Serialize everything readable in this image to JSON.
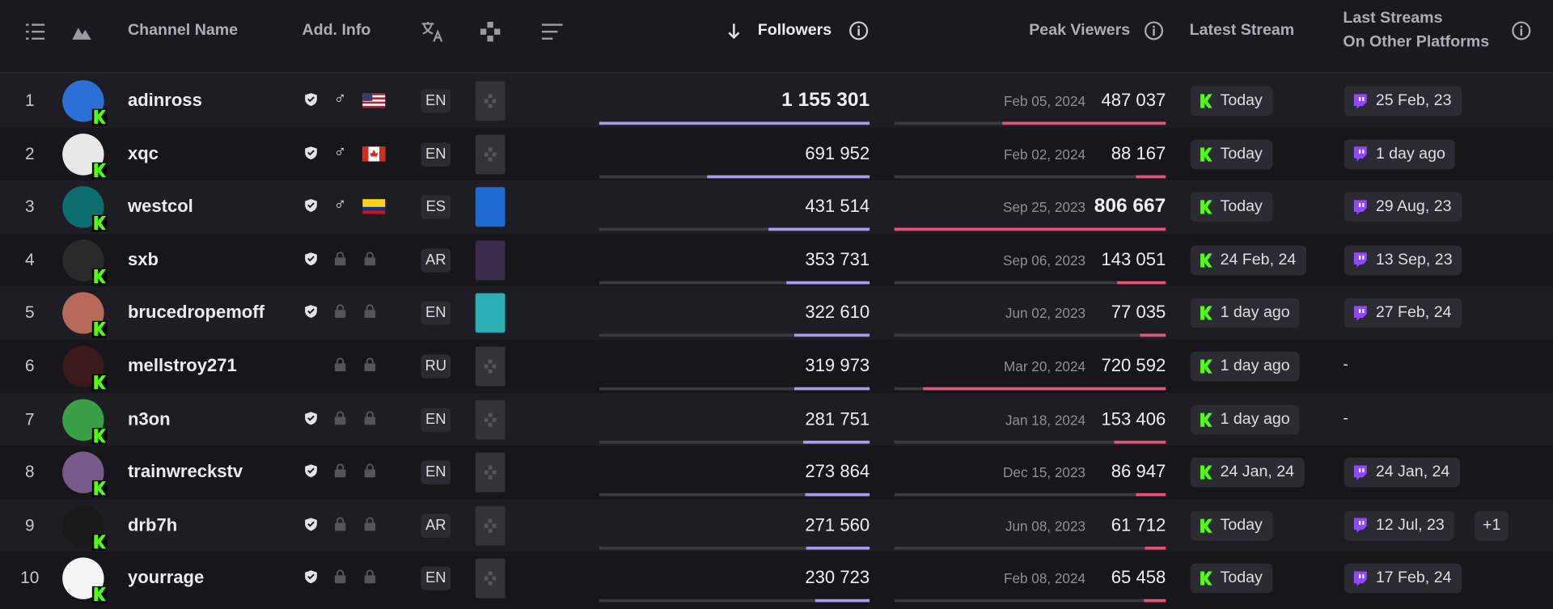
{
  "header": {
    "channel_name": "Channel Name",
    "add_info": "Add. Info",
    "followers": "Followers",
    "peak_viewers": "Peak Viewers",
    "latest_stream": "Latest Stream",
    "last_streams": "Last Streams",
    "last_streams_line2": "On Other Platforms"
  },
  "rows": [
    {
      "rank": "1",
      "channel": "adinross",
      "verified": true,
      "gender": true,
      "flag": "us",
      "language": "EN",
      "game": "none",
      "followers": "1 155 301",
      "peak_date": "Feb 05, 2024",
      "peak_viewers": "487 037",
      "latest_stream": "Today",
      "other_platform": "25 Feb, 23"
    },
    {
      "rank": "2",
      "channel": "xqc",
      "verified": true,
      "gender": true,
      "flag": "ca",
      "language": "EN",
      "game": "none",
      "followers": "691 952",
      "peak_date": "Feb 02, 2024",
      "peak_viewers": "88 167",
      "latest_stream": "Today",
      "other_platform": "1 day ago"
    },
    {
      "rank": "3",
      "channel": "westcol",
      "verified": true,
      "gender": true,
      "flag": "co",
      "language": "ES",
      "game": "blue",
      "followers": "431 514",
      "peak_date": "Sep 25, 2023",
      "peak_viewers": "806 667",
      "latest_stream": "Today",
      "other_platform": "29 Aug, 23"
    },
    {
      "rank": "4",
      "channel": "sxb",
      "verified": true,
      "gender": false,
      "flag": "none",
      "language": "AR",
      "game": "dark",
      "followers": "353 731",
      "peak_date": "Sep 06, 2023",
      "peak_viewers": "143 051",
      "latest_stream": "24 Feb, 24",
      "other_platform": "13 Sep, 23"
    },
    {
      "rank": "5",
      "channel": "brucedropemoff",
      "verified": true,
      "gender": false,
      "flag": "none",
      "language": "EN",
      "game": "teal",
      "followers": "322 610",
      "peak_date": "Jun 02, 2023",
      "peak_viewers": "77 035",
      "latest_stream": "1 day ago",
      "other_platform": "27 Feb, 24"
    },
    {
      "rank": "6",
      "channel": "mellstroy271",
      "verified": false,
      "gender": false,
      "flag": "none",
      "language": "RU",
      "game": "none",
      "followers": "319 973",
      "peak_date": "Mar 20, 2024",
      "peak_viewers": "720 592",
      "latest_stream": "1 day ago",
      "other_platform": "-"
    },
    {
      "rank": "7",
      "channel": "n3on",
      "verified": true,
      "gender": false,
      "flag": "none",
      "language": "EN",
      "game": "none",
      "followers": "281 751",
      "peak_date": "Jan 18, 2024",
      "peak_viewers": "153 406",
      "latest_stream": "1 day ago",
      "other_platform": "-"
    },
    {
      "rank": "8",
      "channel": "trainwreckstv",
      "verified": true,
      "gender": false,
      "flag": "none",
      "language": "EN",
      "game": "none",
      "followers": "273 864",
      "peak_date": "Dec 15, 2023",
      "peak_viewers": "86 947",
      "latest_stream": "24 Jan, 24",
      "other_platform": "24 Jan, 24"
    },
    {
      "rank": "9",
      "channel": "drb7h",
      "verified": true,
      "gender": false,
      "flag": "none",
      "language": "AR",
      "game": "none",
      "followers": "271 560",
      "peak_date": "Jun 08, 2023",
      "peak_viewers": "61 712",
      "latest_stream": "Today",
      "other_platform": "12 Jul, 23",
      "more": "+1"
    },
    {
      "rank": "10",
      "channel": "yourrage",
      "verified": true,
      "gender": false,
      "flag": "none",
      "language": "EN",
      "game": "none",
      "followers": "230 723",
      "peak_date": "Feb 08, 2024",
      "peak_viewers": "65 458",
      "latest_stream": "Today",
      "other_platform": "17 Feb, 24"
    }
  ]
}
